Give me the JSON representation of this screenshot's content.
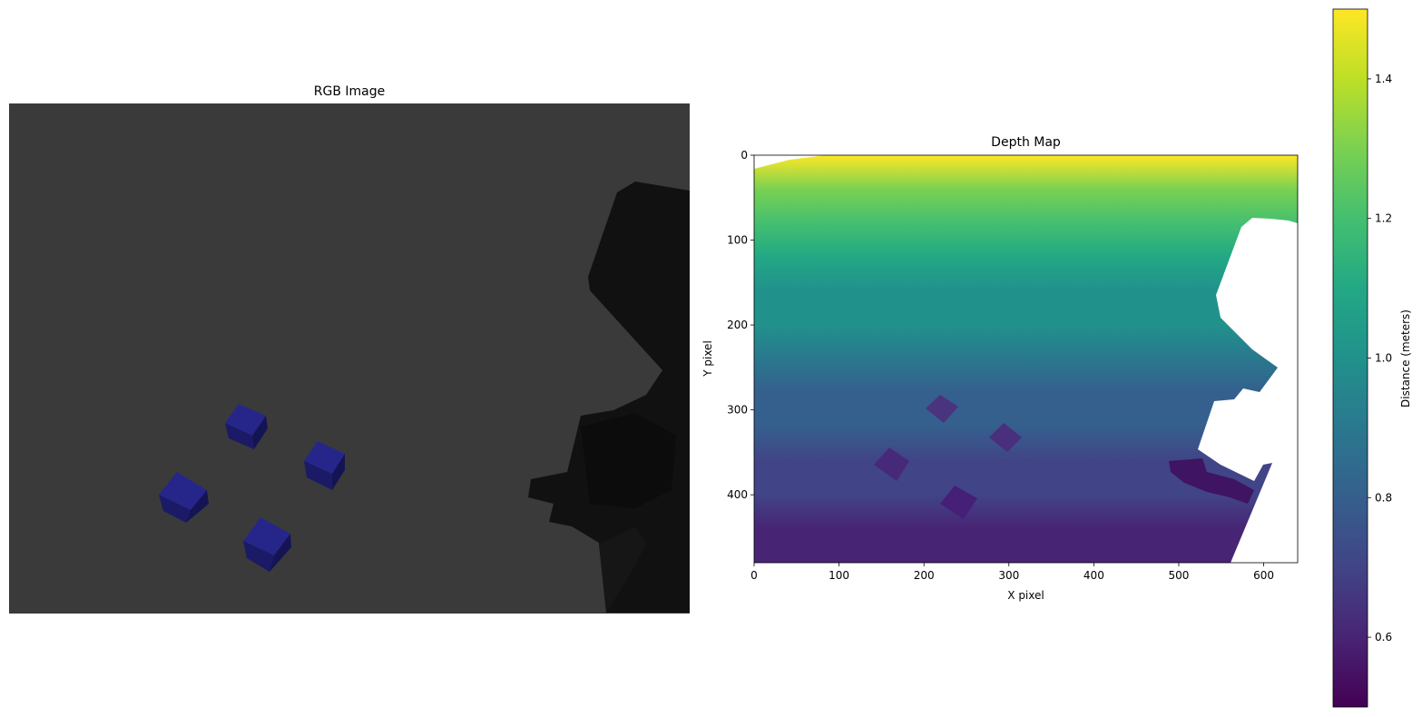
{
  "chart_data": [
    {
      "type": "image",
      "title": "RGB Image",
      "objects": [
        {
          "label": "blue cube",
          "color": "#1f1f7a"
        },
        {
          "label": "blue cube",
          "color": "#1f1f7a"
        },
        {
          "label": "blue cube",
          "color": "#1f1f7a"
        },
        {
          "label": "blue cube",
          "color": "#1f1f7a"
        }
      ],
      "colors": {
        "background": "#3a3a3a",
        "robot": "#111111",
        "cube": "#1f1f7a"
      }
    },
    {
      "type": "heatmap",
      "title": "Depth Map",
      "xlabel": "X pixel",
      "ylabel": "Y pixel",
      "xlim": [
        0,
        640
      ],
      "ylim": [
        480,
        0
      ],
      "xticks": [
        0,
        100,
        200,
        300,
        400,
        500,
        600
      ],
      "yticks": [
        0,
        100,
        200,
        300,
        400
      ],
      "colormap": "viridis",
      "value_range": [
        0.5,
        1.5
      ],
      "depth_top": 1.5,
      "depth_bottom": 0.6,
      "masked_region": {
        "x": [
          510,
          640
        ],
        "y": [
          75,
          620
        ],
        "value": "none"
      },
      "objects_depth": [
        {
          "x": 220,
          "y": 300,
          "depth": 0.64
        },
        {
          "x": 295,
          "y": 335,
          "depth": 0.63
        },
        {
          "x": 160,
          "y": 365,
          "depth": 0.61
        },
        {
          "x": 240,
          "y": 410,
          "depth": 0.6
        },
        {
          "x": 540,
          "y": 380,
          "depth": 0.55
        }
      ]
    },
    {
      "type": "colorbar",
      "label": "Distance (meters)",
      "ticks": [
        0.6,
        0.8,
        1.0,
        1.2,
        1.4
      ],
      "range": [
        0.5,
        1.5
      ],
      "colormap": "viridis"
    }
  ]
}
